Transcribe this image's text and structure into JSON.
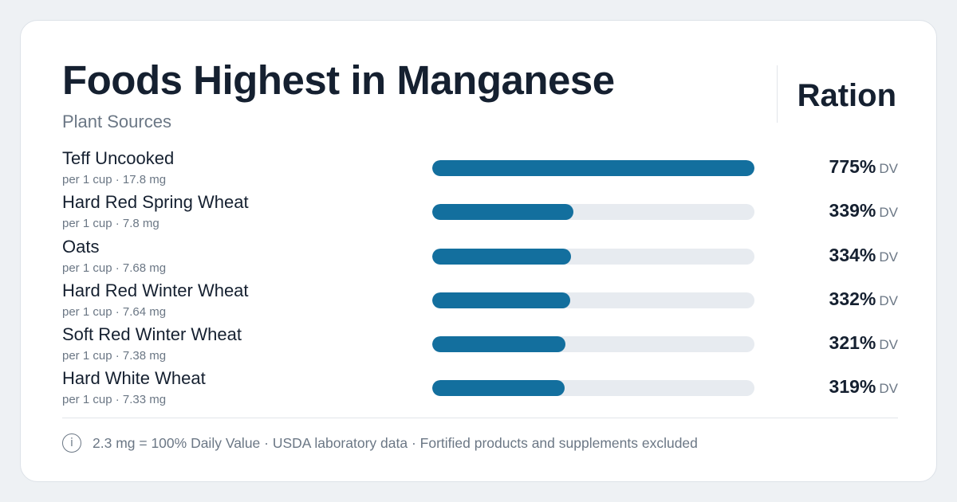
{
  "header": {
    "title": "Foods Highest in Manganese",
    "subtitle": "Plant Sources",
    "brand": "Ration"
  },
  "footer": {
    "icon": "info-icon",
    "note": "2.3 mg = 100% Daily Value · USDA laboratory data · Fortified products and supplements excluded"
  },
  "colors": {
    "bar_fill": "#136f9e",
    "bar_track": "#e7ebf0",
    "background": "#eef1f4",
    "card": "#ffffff"
  },
  "chart_data": {
    "type": "bar",
    "orientation": "horizontal",
    "title": "Foods Highest in Manganese",
    "subtitle": "Plant Sources",
    "value_unit": "DV",
    "xlim": [
      0,
      775
    ],
    "categories": [
      "Teff Uncooked",
      "Hard Red Spring Wheat",
      "Oats",
      "Hard Red Winter Wheat",
      "Soft Red Winter Wheat",
      "Hard White Wheat"
    ],
    "details": [
      "per 1 cup · 17.8 mg",
      "per 1 cup · 7.8 mg",
      "per 1 cup · 7.68 mg",
      "per 1 cup · 7.64 mg",
      "per 1 cup · 7.38 mg",
      "per 1 cup · 7.33 mg"
    ],
    "labels": [
      "775%",
      "339%",
      "334%",
      "332%",
      "321%",
      "319%"
    ],
    "values": [
      775,
      339,
      334,
      332,
      321,
      319
    ]
  }
}
